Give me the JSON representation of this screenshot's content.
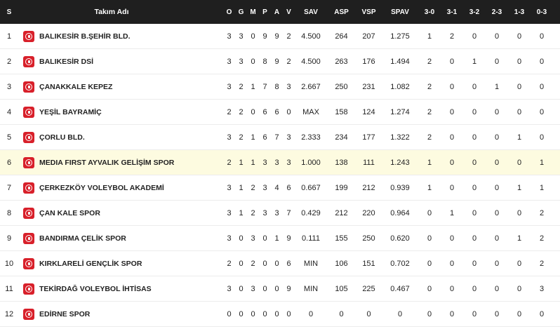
{
  "headers": {
    "rank": "S",
    "team": "Takım Adı",
    "o": "O",
    "g": "G",
    "m": "M",
    "p": "P",
    "a": "A",
    "v": "V",
    "sav": "SAV",
    "asp": "ASP",
    "vsp": "VSP",
    "spav": "SPAV",
    "s30": "3-0",
    "s31": "3-1",
    "s32": "3-2",
    "s23": "2-3",
    "s13": "1-3",
    "s03": "0-3"
  },
  "logo_icon": "club-logo-icon",
  "highlight_color": "#fdfbe0",
  "rows": [
    {
      "rank": "1",
      "team": "BALIKESİR B.ŞEHİR BLD.",
      "o": "3",
      "g": "3",
      "m": "0",
      "p": "9",
      "a": "9",
      "v": "2",
      "sav": "4.500",
      "asp": "264",
      "vsp": "207",
      "spav": "1.275",
      "s30": "1",
      "s31": "2",
      "s32": "0",
      "s23": "0",
      "s13": "0",
      "s03": "0"
    },
    {
      "rank": "2",
      "team": "BALIKESİR DSİ",
      "o": "3",
      "g": "3",
      "m": "0",
      "p": "8",
      "a": "9",
      "v": "2",
      "sav": "4.500",
      "asp": "263",
      "vsp": "176",
      "spav": "1.494",
      "s30": "2",
      "s31": "0",
      "s32": "1",
      "s23": "0",
      "s13": "0",
      "s03": "0"
    },
    {
      "rank": "3",
      "team": "ÇANAKKALE KEPEZ",
      "o": "3",
      "g": "2",
      "m": "1",
      "p": "7",
      "a": "8",
      "v": "3",
      "sav": "2.667",
      "asp": "250",
      "vsp": "231",
      "spav": "1.082",
      "s30": "2",
      "s31": "0",
      "s32": "0",
      "s23": "1",
      "s13": "0",
      "s03": "0"
    },
    {
      "rank": "4",
      "team": "YEŞİL BAYRAMİÇ",
      "o": "2",
      "g": "2",
      "m": "0",
      "p": "6",
      "a": "6",
      "v": "0",
      "sav": "MAX",
      "asp": "158",
      "vsp": "124",
      "spav": "1.274",
      "s30": "2",
      "s31": "0",
      "s32": "0",
      "s23": "0",
      "s13": "0",
      "s03": "0"
    },
    {
      "rank": "5",
      "team": "ÇORLU BLD.",
      "o": "3",
      "g": "2",
      "m": "1",
      "p": "6",
      "a": "7",
      "v": "3",
      "sav": "2.333",
      "asp": "234",
      "vsp": "177",
      "spav": "1.322",
      "s30": "2",
      "s31": "0",
      "s32": "0",
      "s23": "0",
      "s13": "1",
      "s03": "0"
    },
    {
      "rank": "6",
      "team": "MEDIA FIRST AYVALIK GELİŞİM SPOR",
      "o": "2",
      "g": "1",
      "m": "1",
      "p": "3",
      "a": "3",
      "v": "3",
      "sav": "1.000",
      "asp": "138",
      "vsp": "111",
      "spav": "1.243",
      "s30": "1",
      "s31": "0",
      "s32": "0",
      "s23": "0",
      "s13": "0",
      "s03": "1",
      "highlight": true
    },
    {
      "rank": "7",
      "team": "ÇERKEZKÖY VOLEYBOL AKADEMİ",
      "o": "3",
      "g": "1",
      "m": "2",
      "p": "3",
      "a": "4",
      "v": "6",
      "sav": "0.667",
      "asp": "199",
      "vsp": "212",
      "spav": "0.939",
      "s30": "1",
      "s31": "0",
      "s32": "0",
      "s23": "0",
      "s13": "1",
      "s03": "1"
    },
    {
      "rank": "8",
      "team": "ÇAN KALE SPOR",
      "o": "3",
      "g": "1",
      "m": "2",
      "p": "3",
      "a": "3",
      "v": "7",
      "sav": "0.429",
      "asp": "212",
      "vsp": "220",
      "spav": "0.964",
      "s30": "0",
      "s31": "1",
      "s32": "0",
      "s23": "0",
      "s13": "0",
      "s03": "2"
    },
    {
      "rank": "9",
      "team": "BANDIRMA ÇELİK SPOR",
      "o": "3",
      "g": "0",
      "m": "3",
      "p": "0",
      "a": "1",
      "v": "9",
      "sav": "0.111",
      "asp": "155",
      "vsp": "250",
      "spav": "0.620",
      "s30": "0",
      "s31": "0",
      "s32": "0",
      "s23": "0",
      "s13": "1",
      "s03": "2"
    },
    {
      "rank": "10",
      "team": "KIRKLARELİ GENÇLİK SPOR",
      "o": "2",
      "g": "0",
      "m": "2",
      "p": "0",
      "a": "0",
      "v": "6",
      "sav": "MIN",
      "asp": "106",
      "vsp": "151",
      "spav": "0.702",
      "s30": "0",
      "s31": "0",
      "s32": "0",
      "s23": "0",
      "s13": "0",
      "s03": "2"
    },
    {
      "rank": "11",
      "team": "TEKİRDAĞ VOLEYBOL İHTİSAS",
      "o": "3",
      "g": "0",
      "m": "3",
      "p": "0",
      "a": "0",
      "v": "9",
      "sav": "MIN",
      "asp": "105",
      "vsp": "225",
      "spav": "0.467",
      "s30": "0",
      "s31": "0",
      "s32": "0",
      "s23": "0",
      "s13": "0",
      "s03": "3"
    },
    {
      "rank": "12",
      "team": "EDİRNE SPOR",
      "o": "0",
      "g": "0",
      "m": "0",
      "p": "0",
      "a": "0",
      "v": "0",
      "sav": "0",
      "asp": "0",
      "vsp": "0",
      "spav": "0",
      "s30": "0",
      "s31": "0",
      "s32": "0",
      "s23": "0",
      "s13": "0",
      "s03": "0"
    }
  ]
}
